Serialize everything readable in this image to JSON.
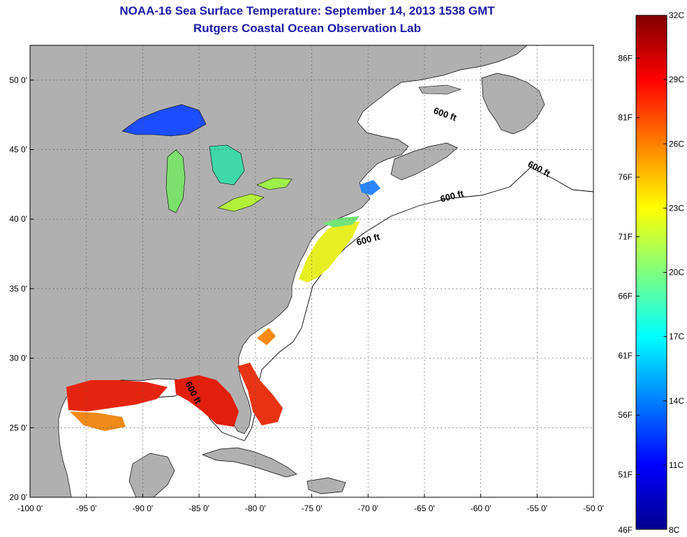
{
  "title": "NOAA-16 Sea Surface Temperature:  September 14, 2013 1538 GMT",
  "subtitle": "Rutgers Coastal Ocean Observation Lab",
  "map": {
    "lon_range": [
      -100,
      -50
    ],
    "lat_range": [
      20,
      52.5
    ],
    "lon_ticks": [
      "-100 0'",
      "-95 0'",
      "-90 0'",
      "-85 0'",
      "-80 0'",
      "-75 0'",
      "-70 0'",
      "-65 0'",
      "-60 0'",
      "-55 0'",
      "-50 0'"
    ],
    "lat_ticks": [
      "20 0'",
      "25 0'",
      "30 0'",
      "35 0'",
      "40 0'",
      "45 0'",
      "50 0'"
    ],
    "isobath_labels": [
      "600 ft",
      "600 ft",
      "600 ft",
      "600 ft",
      "600 ft"
    ],
    "colors": {
      "land": "#b0b0b0",
      "ocean": "#ffffff",
      "grid": "#666666"
    }
  },
  "colorbar": {
    "top_celsius": "32C",
    "bottom_celsius": "8C",
    "bottom_fahrenheit": "46F",
    "fahrenheit_labels": [
      "86F",
      "81F",
      "76F",
      "71F",
      "66F",
      "61F",
      "56F",
      "51F"
    ],
    "celsius_labels": [
      "29C",
      "26C",
      "23C",
      "20C",
      "17C",
      "14C",
      "11C"
    ]
  }
}
